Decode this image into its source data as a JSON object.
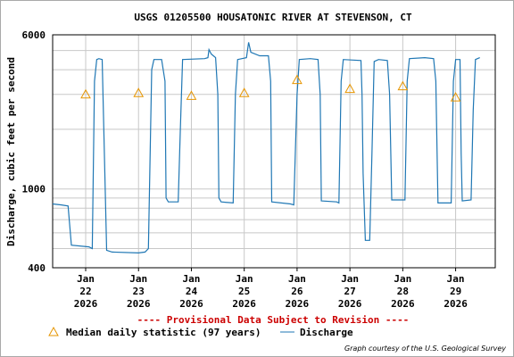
{
  "chart_data": {
    "type": "line",
    "title": "USGS 01205500 HOUSATONIC RIVER AT STEVENSON, CT",
    "ylabel": "Discharge, cubic feet per second",
    "xlabel": "",
    "yscale": "log",
    "ylim": [
      400,
      6000
    ],
    "ytick_labels": [
      "400",
      "1000",
      "6000"
    ],
    "xlim": [
      "2026-01-21T09:00",
      "2026-01-29T18:00"
    ],
    "x_ticks": [
      {
        "date": "2026-01-22",
        "month": "Jan",
        "day": "22",
        "year": "2026"
      },
      {
        "date": "2026-01-23",
        "month": "Jan",
        "day": "23",
        "year": "2026"
      },
      {
        "date": "2026-01-24",
        "month": "Jan",
        "day": "24",
        "year": "2026"
      },
      {
        "date": "2026-01-25",
        "month": "Jan",
        "day": "25",
        "year": "2026"
      },
      {
        "date": "2026-01-26",
        "month": "Jan",
        "day": "26",
        "year": "2026"
      },
      {
        "date": "2026-01-27",
        "month": "Jan",
        "day": "27",
        "year": "2026"
      },
      {
        "date": "2026-01-28",
        "month": "Jan",
        "day": "28",
        "year": "2026"
      },
      {
        "date": "2026-01-29",
        "month": "Jan",
        "day": "29",
        "year": "2026"
      }
    ],
    "grid": true,
    "series": [
      {
        "name": "Discharge",
        "color": "#1f77b4",
        "points": [
          [
            "2026-01-21T09:00",
            840
          ],
          [
            "2026-01-21T13:00",
            830
          ],
          [
            "2026-01-21T16:00",
            820
          ],
          [
            "2026-01-21T17:30",
            520
          ],
          [
            "2026-01-22T01:30",
            510
          ],
          [
            "2026-01-22T03:00",
            500
          ],
          [
            "2026-01-22T04:00",
            3500
          ],
          [
            "2026-01-22T05:00",
            4500
          ],
          [
            "2026-01-22T06:00",
            4550
          ],
          [
            "2026-01-22T07:30",
            4500
          ],
          [
            "2026-01-22T09:30",
            490
          ],
          [
            "2026-01-22T12:00",
            480
          ],
          [
            "2026-01-23T00:00",
            475
          ],
          [
            "2026-01-23T03:00",
            480
          ],
          [
            "2026-01-23T04:30",
            500
          ],
          [
            "2026-01-23T06:00",
            4000
          ],
          [
            "2026-01-23T07:00",
            4500
          ],
          [
            "2026-01-23T10:30",
            4500
          ],
          [
            "2026-01-23T12:00",
            3500
          ],
          [
            "2026-01-23T12:30",
            900
          ],
          [
            "2026-01-23T13:30",
            860
          ],
          [
            "2026-01-23T18:00",
            860
          ],
          [
            "2026-01-23T19:00",
            2000
          ],
          [
            "2026-01-23T20:00",
            4500
          ],
          [
            "2026-01-24T06:00",
            4550
          ],
          [
            "2026-01-24T07:30",
            4600
          ],
          [
            "2026-01-24T08:00",
            5050
          ],
          [
            "2026-01-24T09:00",
            4800
          ],
          [
            "2026-01-24T10:00",
            4700
          ],
          [
            "2026-01-24T11:00",
            4600
          ],
          [
            "2026-01-24T12:00",
            3000
          ],
          [
            "2026-01-24T12:30",
            900
          ],
          [
            "2026-01-24T13:30",
            860
          ],
          [
            "2026-01-24T19:00",
            850
          ],
          [
            "2026-01-24T20:00",
            3000
          ],
          [
            "2026-01-24T21:00",
            4500
          ],
          [
            "2026-01-25T01:00",
            4600
          ],
          [
            "2026-01-25T02:00",
            5500
          ],
          [
            "2026-01-25T03:00",
            4900
          ],
          [
            "2026-01-25T07:00",
            4700
          ],
          [
            "2026-01-25T11:00",
            4700
          ],
          [
            "2026-01-25T12:00",
            3500
          ],
          [
            "2026-01-25T12:30",
            860
          ],
          [
            "2026-01-25T21:00",
            840
          ],
          [
            "2026-01-25T22:30",
            830
          ],
          [
            "2026-01-26T00:00",
            3000
          ],
          [
            "2026-01-26T01:00",
            4500
          ],
          [
            "2026-01-26T06:00",
            4550
          ],
          [
            "2026-01-26T09:30",
            4500
          ],
          [
            "2026-01-26T10:30",
            3000
          ],
          [
            "2026-01-26T11:00",
            870
          ],
          [
            "2026-01-26T18:00",
            860
          ],
          [
            "2026-01-26T19:00",
            850
          ],
          [
            "2026-01-26T20:00",
            3500
          ],
          [
            "2026-01-26T21:00",
            4500
          ],
          [
            "2026-01-27T05:00",
            4450
          ],
          [
            "2026-01-27T05:30",
            3000
          ],
          [
            "2026-01-27T06:00",
            1200
          ],
          [
            "2026-01-27T07:00",
            550
          ],
          [
            "2026-01-27T09:00",
            550
          ],
          [
            "2026-01-27T10:00",
            1500
          ],
          [
            "2026-01-27T11:00",
            4400
          ],
          [
            "2026-01-27T13:00",
            4500
          ],
          [
            "2026-01-27T17:00",
            4450
          ],
          [
            "2026-01-27T18:00",
            3000
          ],
          [
            "2026-01-27T19:00",
            880
          ],
          [
            "2026-01-28T01:00",
            880
          ],
          [
            "2026-01-28T02:00",
            3500
          ],
          [
            "2026-01-28T03:00",
            4550
          ],
          [
            "2026-01-28T10:00",
            4600
          ],
          [
            "2026-01-28T14:00",
            4550
          ],
          [
            "2026-01-28T15:00",
            3500
          ],
          [
            "2026-01-28T16:00",
            850
          ],
          [
            "2026-01-28T22:00",
            850
          ],
          [
            "2026-01-28T23:00",
            3500
          ],
          [
            "2026-01-29T00:00",
            4500
          ],
          [
            "2026-01-29T02:00",
            4500
          ],
          [
            "2026-01-29T02:30",
            1500
          ],
          [
            "2026-01-29T03:00",
            870
          ],
          [
            "2026-01-29T07:00",
            880
          ],
          [
            "2026-01-29T08:00",
            2500
          ],
          [
            "2026-01-29T09:00",
            4500
          ],
          [
            "2026-01-29T11:00",
            4600
          ]
        ]
      },
      {
        "name": "Median daily statistic (97 years)",
        "marker": "triangle",
        "color": "#e69500",
        "points": [
          [
            "2026-01-22T00:00",
            3000
          ],
          [
            "2026-01-23T00:00",
            3050
          ],
          [
            "2026-01-24T00:00",
            2950
          ],
          [
            "2026-01-25T00:00",
            3050
          ],
          [
            "2026-01-26T00:00",
            3550
          ],
          [
            "2026-01-27T00:00",
            3200
          ],
          [
            "2026-01-28T00:00",
            3300
          ],
          [
            "2026-01-29T00:00",
            2900
          ]
        ]
      }
    ],
    "annotations": [
      "---- Provisional Data Subject to Revision ----"
    ],
    "legend": {
      "position": "bottom",
      "entries": [
        "Median daily statistic (97 years)",
        "Discharge"
      ]
    },
    "credit": "Graph courtesy of the U.S. Geological Survey"
  }
}
